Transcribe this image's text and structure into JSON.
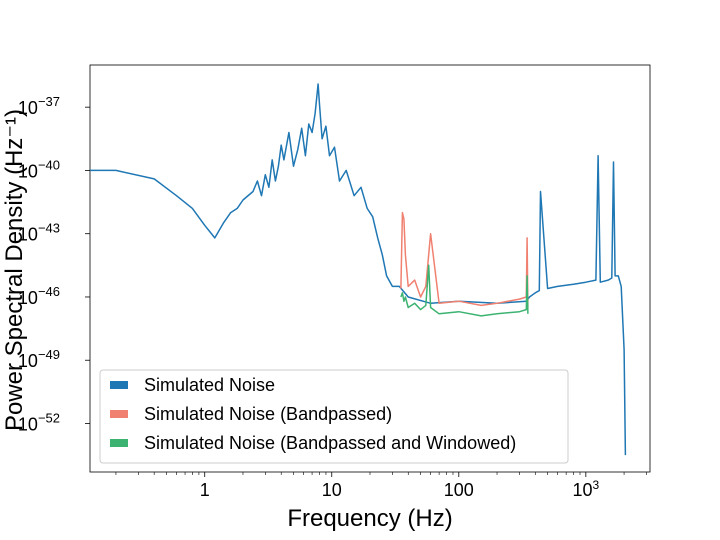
{
  "chart_data": {
    "type": "line",
    "title": "",
    "xlabel": "Frequency (Hz)",
    "ylabel": "Power Spectral Density (Hz⁻¹)",
    "xscale": "log",
    "yscale": "log",
    "xlim": [
      0.125,
      3200
    ],
    "ylim_exponent": [
      -54.3,
      -35.0
    ],
    "x_ticks": [
      {
        "value": 1,
        "label": "1"
      },
      {
        "value": 10,
        "label": "10"
      },
      {
        "value": 100,
        "label": "100"
      },
      {
        "value": 1000,
        "label": "10",
        "sup": "3"
      }
    ],
    "y_ticks": [
      {
        "exp": -37,
        "label": "10",
        "sup": "−37"
      },
      {
        "exp": -40,
        "label": "10",
        "sup": "−40"
      },
      {
        "exp": -43,
        "label": "10",
        "sup": "−43"
      },
      {
        "exp": -46,
        "label": "10",
        "sup": "−46"
      },
      {
        "exp": -49,
        "label": "10",
        "sup": "−49"
      },
      {
        "exp": -52,
        "label": "10",
        "sup": "−52"
      }
    ],
    "legend_placement": "lower-left",
    "grid": false,
    "series": [
      {
        "name": "Simulated Noise",
        "color": "#1f77b4",
        "x": [
          0.125,
          0.2,
          0.4,
          0.6,
          0.8,
          1.0,
          1.2,
          1.4,
          1.6,
          1.8,
          2.0,
          2.4,
          2.6,
          2.8,
          3.0,
          3.2,
          3.4,
          3.6,
          3.8,
          4.0,
          4.2,
          4.6,
          5.0,
          5.4,
          5.8,
          6.2,
          6.6,
          7.0,
          7.4,
          7.8,
          8.0,
          8.4,
          9.0,
          9.6,
          10.5,
          11.5,
          13,
          15,
          17,
          19,
          21,
          23,
          25,
          27,
          30,
          34,
          40,
          60,
          100,
          200,
          340,
          360,
          400,
          430,
          440,
          500,
          600,
          800,
          1000,
          1200,
          1250,
          1300,
          1500,
          1600,
          1650,
          1700,
          1800,
          1900,
          2000,
          2048
        ],
        "y_exp": [
          -40.0,
          -40.0,
          -40.4,
          -41.2,
          -41.8,
          -42.6,
          -43.2,
          -42.5,
          -42.0,
          -41.8,
          -41.4,
          -41.0,
          -40.5,
          -41.2,
          -40.2,
          -40.8,
          -39.5,
          -40.5,
          -39.8,
          -38.8,
          -39.5,
          -38.2,
          -39.8,
          -39.0,
          -38.0,
          -39.3,
          -37.8,
          -38.2,
          -37.3,
          -35.9,
          -36.8,
          -38.5,
          -37.9,
          -39.3,
          -38.9,
          -40.5,
          -40.0,
          -41.2,
          -40.8,
          -41.8,
          -42.2,
          -43.2,
          -44.0,
          -45.0,
          -45.5,
          -45.5,
          -46.0,
          -46.3,
          -46.2,
          -46.3,
          -46.2,
          -46.0,
          -45.8,
          -45.7,
          -41.0,
          -45.6,
          -45.5,
          -45.4,
          -45.3,
          -45.2,
          -39.3,
          -45.3,
          -45.2,
          -45.1,
          -39.6,
          -45.0,
          -45.0,
          -45.5,
          -48.5,
          -53.5
        ]
      },
      {
        "name": "Simulated Noise (Bandpassed)",
        "color": "#f08070",
        "x": [
          35,
          36,
          37,
          38,
          40,
          45,
          50,
          55,
          60,
          70,
          100,
          150,
          200,
          300,
          340,
          345,
          350
        ],
        "y_exp": [
          -45.6,
          -42.0,
          -42.3,
          -44.0,
          -45.5,
          -45.2,
          -46.0,
          -45.5,
          -43.0,
          -46.3,
          -46.2,
          -46.4,
          -46.3,
          -46.1,
          -46.0,
          -43.2,
          -46.5
        ]
      },
      {
        "name": "Simulated Noise (Bandpassed and Windowed)",
        "color": "#3cb371",
        "x": [
          35,
          36,
          37,
          38,
          40,
          45,
          50,
          55,
          58,
          60,
          70,
          100,
          150,
          200,
          300,
          340,
          345,
          350
        ],
        "y_exp": [
          -46.0,
          -45.8,
          -46.2,
          -46.0,
          -46.5,
          -46.3,
          -46.6,
          -46.4,
          -44.5,
          -46.5,
          -46.8,
          -46.7,
          -46.9,
          -46.8,
          -46.7,
          -46.6,
          -45.0,
          -46.8
        ]
      }
    ]
  }
}
